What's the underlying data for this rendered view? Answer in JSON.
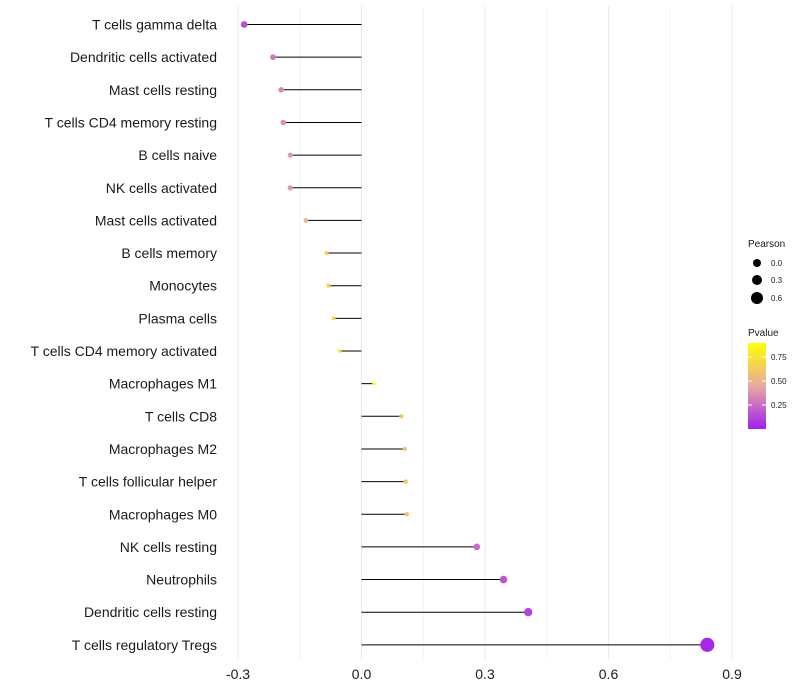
{
  "chart_data": {
    "type": "lollipop",
    "title": "",
    "xlabel": "",
    "ylabel": "",
    "xlim": [
      -0.3,
      0.9
    ],
    "x_ticks": [
      -0.3,
      0.0,
      0.3,
      0.6,
      0.9
    ],
    "x_tick_labels": [
      "-0.3",
      "0.0",
      "0.3",
      "0.6",
      "0.9"
    ],
    "grid": true,
    "categories": [
      "T cells gamma delta",
      "Dendritic cells activated",
      "Mast cells resting",
      "T cells CD4 memory resting",
      "B cells naive",
      "NK cells activated",
      "Mast cells activated",
      "B cells memory",
      "Monocytes",
      "Plasma cells",
      "T cells CD4 memory activated",
      "Macrophages M1",
      "T cells CD8",
      "Macrophages M2",
      "T cells follicular helper",
      "Macrophages M0",
      "NK cells resting",
      "Neutrophils",
      "Dendritic cells resting",
      "T cells regulatory  Tregs"
    ],
    "values": [
      -0.285,
      -0.215,
      -0.195,
      -0.19,
      -0.173,
      -0.173,
      -0.135,
      -0.085,
      -0.08,
      -0.068,
      -0.053,
      0.03,
      0.097,
      0.105,
      0.107,
      0.11,
      0.28,
      0.345,
      0.405,
      0.84
    ],
    "pvalues": [
      0.18,
      0.33,
      0.38,
      0.4,
      0.45,
      0.45,
      0.58,
      0.71,
      0.72,
      0.8,
      0.88,
      0.96,
      0.7,
      0.67,
      0.66,
      0.65,
      0.28,
      0.2,
      0.13,
      0.03
    ],
    "legend": {
      "size_title": "Pearson",
      "size_labels": [
        "0.0",
        "0.3",
        "0.6"
      ],
      "color_title": "Pvalue",
      "color_labels": [
        "0.75",
        "0.50",
        "0.25"
      ],
      "color_low": "#A020F0",
      "color_high": "#FFFF00",
      "position": "right"
    }
  }
}
